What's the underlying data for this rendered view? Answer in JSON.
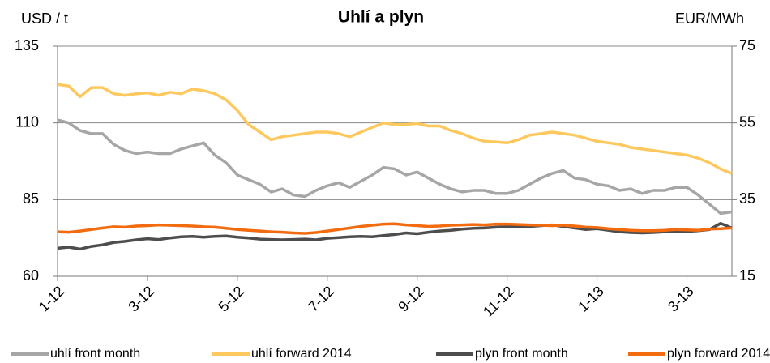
{
  "chart_data": {
    "type": "line",
    "title": "Uhlí a plyn",
    "y_label": "USD / t",
    "y2_label": "EUR/MWh",
    "categories": [
      "1-12",
      null,
      null,
      null,
      null,
      null,
      null,
      null,
      "3-12",
      null,
      null,
      null,
      null,
      null,
      null,
      null,
      "5-12",
      null,
      null,
      null,
      null,
      null,
      null,
      null,
      "7-12",
      null,
      null,
      null,
      null,
      null,
      null,
      null,
      "9-12",
      null,
      null,
      null,
      null,
      null,
      null,
      null,
      "11-12",
      null,
      null,
      null,
      null,
      null,
      null,
      null,
      "1-13",
      null,
      null,
      null,
      null,
      null,
      null,
      null,
      "3-13",
      null,
      null,
      null,
      null
    ],
    "ylim": [
      60,
      135
    ],
    "yticks": [
      60,
      85,
      110,
      135
    ],
    "y2lim": [
      15,
      75
    ],
    "y2ticks": [
      15,
      35,
      55,
      75
    ],
    "grid": true,
    "legend": "bottom",
    "series": [
      {
        "name": "uhlí front month",
        "color": "#a6a6a6",
        "values": [
          111,
          110,
          107.5,
          106.5,
          106.5,
          103,
          101,
          100,
          100.5,
          100,
          100,
          101.5,
          102.5,
          103.5,
          99.5,
          97,
          93,
          91.5,
          90,
          87.5,
          88.5,
          86.5,
          86,
          88,
          89.5,
          90.5,
          89,
          91,
          93,
          95.5,
          95,
          93,
          94,
          92,
          90,
          88.5,
          87.5,
          88,
          88,
          87,
          87,
          88,
          90,
          92,
          93.5,
          94.5,
          92,
          91.5,
          90,
          89.5,
          88,
          88.5,
          87,
          88,
          88,
          89,
          89,
          86.5,
          83.5,
          80.5,
          81
        ]
      },
      {
        "name": "uhlí forward 2014",
        "color": "#fdc95f",
        "values": [
          122.5,
          122,
          118.5,
          121.5,
          121.5,
          119.5,
          119,
          119.5,
          119.8,
          119,
          120,
          119.5,
          121,
          120.5,
          119.5,
          117.5,
          114,
          109.5,
          107,
          104.5,
          105.5,
          106,
          106.5,
          107,
          107,
          106.5,
          105.5,
          107,
          108.5,
          110,
          109.5,
          109.5,
          109.8,
          109,
          109,
          107.5,
          106.5,
          105,
          104,
          103.8,
          103.5,
          104.5,
          106,
          106.5,
          107,
          106.5,
          106,
          105,
          104,
          103.5,
          103,
          102,
          101.5,
          101,
          100.5,
          100,
          99.5,
          98.5,
          97,
          95,
          93.5
        ]
      },
      {
        "name": "plyn front month",
        "color": "#4d4d4d",
        "axis": "y2",
        "values": [
          22.3,
          22.6,
          22.1,
          22.8,
          23.2,
          23.8,
          24.1,
          24.5,
          24.8,
          24.6,
          25.0,
          25.3,
          25.4,
          25.2,
          25.4,
          25.5,
          25.2,
          25.0,
          24.7,
          24.6,
          24.5,
          24.6,
          24.7,
          24.5,
          24.9,
          25.1,
          25.3,
          25.4,
          25.3,
          25.6,
          25.9,
          26.3,
          26.1,
          26.5,
          26.8,
          27.0,
          27.3,
          27.5,
          27.6,
          27.8,
          27.9,
          27.9,
          28.0,
          28.2,
          28.4,
          28.0,
          27.6,
          27.2,
          27.4,
          27.0,
          26.6,
          26.4,
          26.3,
          26.4,
          26.6,
          26.8,
          26.7,
          26.9,
          27.2,
          28.8,
          27.6
        ]
      },
      {
        "name": "plyn forward 2014",
        "color": "#f26b0f",
        "axis": "y2",
        "values": [
          26.6,
          26.5,
          26.8,
          27.2,
          27.6,
          27.9,
          27.8,
          28.1,
          28.2,
          28.4,
          28.3,
          28.2,
          28.1,
          27.9,
          27.8,
          27.5,
          27.2,
          27.0,
          26.8,
          26.6,
          26.5,
          26.3,
          26.2,
          26.4,
          26.8,
          27.2,
          27.6,
          28.0,
          28.3,
          28.6,
          28.7,
          28.4,
          28.2,
          28.0,
          28.1,
          28.3,
          28.4,
          28.5,
          28.4,
          28.6,
          28.6,
          28.5,
          28.4,
          28.3,
          28.2,
          28.3,
          28.1,
          27.8,
          27.7,
          27.4,
          27.2,
          27.0,
          26.9,
          26.9,
          27.0,
          27.2,
          27.1,
          27.0,
          27.3,
          27.4,
          27.6
        ]
      }
    ]
  }
}
